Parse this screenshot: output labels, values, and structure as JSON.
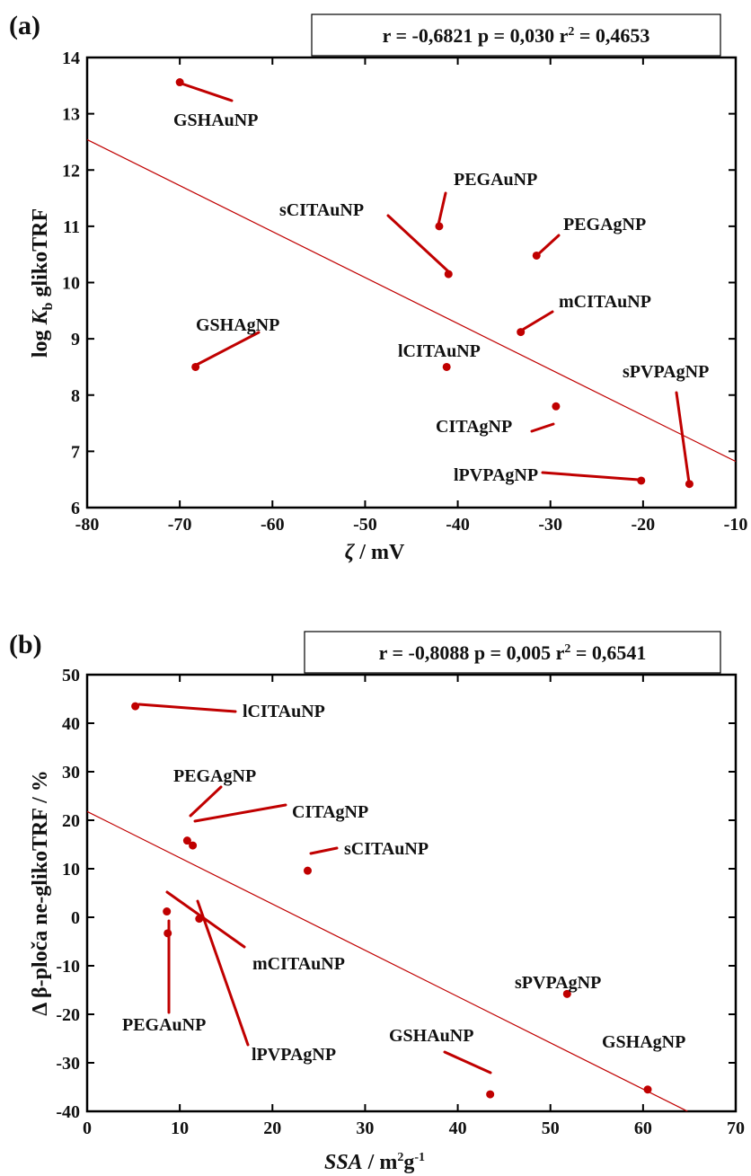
{
  "chart_data": [
    {
      "type": "scatter",
      "panel": "(a)",
      "stats_parts": [
        "r = -0,6821 p = 0,030 r",
        "2",
        " = 0,4653"
      ],
      "xlabel_parts": [
        "ζ",
        " / mV"
      ],
      "ylabel_parts": [
        "log ",
        "K",
        "b",
        " glikoTRF"
      ],
      "xlim": [
        -80,
        -10
      ],
      "ylim": [
        6,
        14
      ],
      "xticks": [
        -80,
        -70,
        -60,
        -50,
        -40,
        -30,
        -20,
        -10
      ],
      "yticks": [
        6,
        7,
        8,
        9,
        10,
        11,
        12,
        13,
        14
      ],
      "regression_line": {
        "x": [
          -80,
          -10
        ],
        "y": [
          12.54,
          6.82
        ]
      },
      "points": [
        {
          "label": "GSHAuNP",
          "x": -70,
          "y": 13.56
        },
        {
          "label": "PEGAuNP",
          "x": -42,
          "y": 11.0
        },
        {
          "label": "sCITAuNP",
          "x": -41,
          "y": 10.15
        },
        {
          "label": "PEGAgNP",
          "x": -31.5,
          "y": 10.48
        },
        {
          "label": "mCITAuNP",
          "x": -33.2,
          "y": 9.12
        },
        {
          "label": "GSHAgNP",
          "x": -68.3,
          "y": 8.5
        },
        {
          "label": "lCITAuNP",
          "x": -41.2,
          "y": 8.5
        },
        {
          "label": "sPVPAgNP",
          "x": -15,
          "y": 6.42
        },
        {
          "label": "CITAgNP",
          "x": -29.4,
          "y": 7.8
        },
        {
          "label": "lPVPAgNP",
          "x": -20.2,
          "y": 6.48
        }
      ],
      "color": "#c00000"
    },
    {
      "type": "scatter",
      "panel": "(b)",
      "stats_parts": [
        "r = -0,8088 p = 0,005 r",
        "2",
        " = 0,6541"
      ],
      "xlabel_parts": [
        "SSA",
        " / m",
        "2",
        "g",
        "-1"
      ],
      "ylabel_parts": [
        "Δ β-ploča ne-glikoTRF / %"
      ],
      "xlim": [
        0,
        70
      ],
      "ylim": [
        -40,
        50
      ],
      "xticks": [
        0,
        10,
        20,
        30,
        40,
        50,
        60,
        70
      ],
      "yticks": [
        -40,
        -30,
        -20,
        -10,
        0,
        10,
        20,
        30,
        40,
        50
      ],
      "regression_line": {
        "x": [
          0,
          64.8
        ],
        "y": [
          21.8,
          -40
        ]
      },
      "points": [
        {
          "label": "lCITAuNP",
          "x": 5.2,
          "y": 43.5
        },
        {
          "label": "PEGAgNP",
          "x": 10.8,
          "y": 15.8
        },
        {
          "label": "CITAgNP",
          "x": 11.4,
          "y": 14.8
        },
        {
          "label": "sCITAuNP",
          "x": 23.8,
          "y": 9.6
        },
        {
          "label": "mCITAuNP",
          "x": 8.6,
          "y": 1.2
        },
        {
          "label": "lPVPAgNP",
          "x": 12.1,
          "y": -0.3
        },
        {
          "label": "PEGAuNP",
          "x": 8.7,
          "y": -3.3
        },
        {
          "label": "sPVPAgNP",
          "x": 51.8,
          "y": -15.8
        },
        {
          "label": "GSHAgNP",
          "x": 60.5,
          "y": -35.5
        },
        {
          "label": "GSHAuNP",
          "x": 43.5,
          "y": -36.5
        }
      ],
      "color": "#c00000"
    }
  ]
}
